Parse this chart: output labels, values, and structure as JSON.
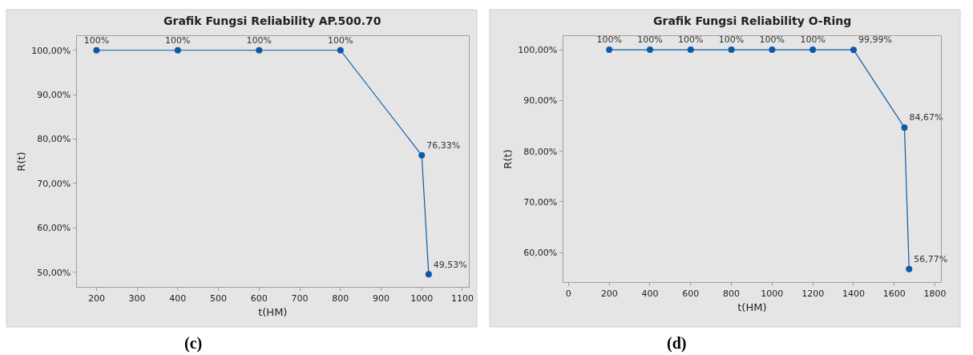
{
  "chart_data": [
    {
      "type": "line",
      "title": "Grafik Fungsi Reliability AP.500.70",
      "xlabel": "t(HM)",
      "ylabel": "R(t)",
      "x": [
        200,
        400,
        600,
        800,
        1000,
        1017
      ],
      "series": [
        {
          "color": "#0b5aa6",
          "values": [
            100,
            100,
            100,
            100,
            76.33,
            49.53
          ],
          "value_labels": [
            "100%",
            "100%",
            "100%",
            "100%",
            "76,33%",
            "49,53%"
          ]
        }
      ],
      "xlim": [
        151,
        1116
      ],
      "xticks": [
        200,
        300,
        400,
        500,
        600,
        700,
        800,
        900,
        1000,
        1100
      ],
      "ylim": [
        46.7,
        103.2
      ],
      "yticks": [
        {
          "value": 50,
          "label": "50,00%"
        },
        {
          "value": 60,
          "label": "60,00%"
        },
        {
          "value": 70,
          "label": "70,00%"
        },
        {
          "value": 80,
          "label": "80,00%"
        },
        {
          "value": 90,
          "label": "90,00%"
        },
        {
          "value": 100,
          "label": "100,00%"
        }
      ],
      "marker": "circle",
      "line_style": "solid",
      "grid": false,
      "annotations": [
        "(c)"
      ]
    },
    {
      "type": "line",
      "title": "Grafik Fungsi Reliability O-Ring",
      "xlabel": "t(HM)",
      "ylabel": "R(t)",
      "x": [
        200,
        400,
        600,
        800,
        1000,
        1200,
        1400,
        1650,
        1673
      ],
      "series": [
        {
          "color": "#0b5aa6",
          "values": [
            100,
            100,
            100,
            100,
            100,
            100,
            99.99,
            84.67,
            56.77
          ],
          "value_labels": [
            "100%",
            "100%",
            "100%",
            "100%",
            "100%",
            "100%",
            "99,99%",
            "84,67%",
            "56,77%"
          ]
        }
      ],
      "xlim": [
        -27,
        1830
      ],
      "xticks": [
        0,
        200,
        400,
        600,
        800,
        1000,
        1200,
        1400,
        1600,
        1800
      ],
      "ylim": [
        54.2,
        102.7
      ],
      "yticks": [
        {
          "value": 60,
          "label": "60,00%"
        },
        {
          "value": 70,
          "label": "70,00%"
        },
        {
          "value": 80,
          "label": "80,00%"
        },
        {
          "value": 90,
          "label": "90,00%"
        },
        {
          "value": 100,
          "label": "100,00%"
        }
      ],
      "marker": "circle",
      "line_style": "solid",
      "grid": false,
      "annotations": [
        "(d)"
      ]
    }
  ]
}
